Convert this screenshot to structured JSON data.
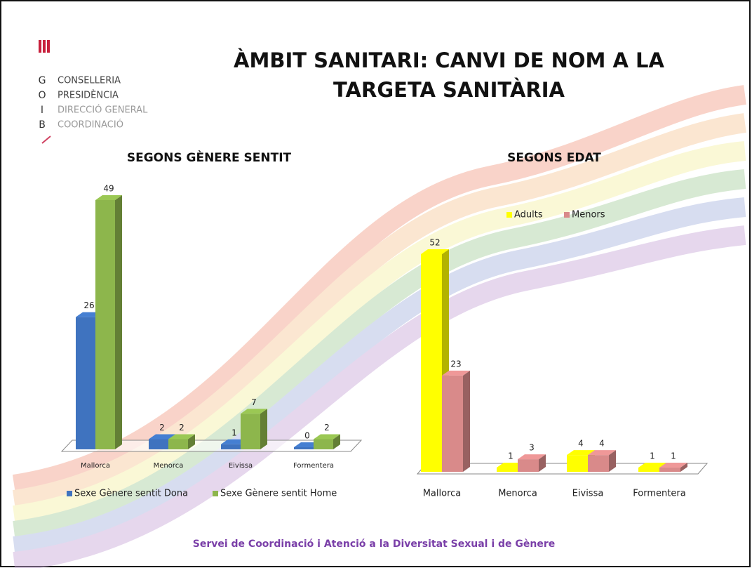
{
  "slide": {
    "title_lines": [
      "ÀMBIT SANITARI: CANVI DE NOM A LA",
      "TARGETA SANITÀRIA"
    ],
    "logo": [
      {
        "letter": "G",
        "text": "CONSELLERIA"
      },
      {
        "letter": "O",
        "text": "PRESIDÈNCIA"
      },
      {
        "letter": "I",
        "text": "DIRECCIÓ GENERAL"
      },
      {
        "letter": "B",
        "text": "COORDINACIÓ"
      }
    ],
    "footer": "Servei de Coordinació i Atenció a la Diversitat Sexual i de Gènere"
  },
  "chart_data": [
    {
      "type": "bar3d",
      "title": "SEGONS GÈNERE SENTIT",
      "categories": [
        "Mallorca",
        "Menorca",
        "Eivissa",
        "Formentera"
      ],
      "series": [
        {
          "name": "Sexe Gènere sentit Dona",
          "color": "#3f73bf",
          "values": [
            26,
            2,
            1,
            0
          ]
        },
        {
          "name": "Sexe Gènere sentit Home",
          "color": "#8db64c",
          "values": [
            49,
            2,
            7,
            2
          ]
        }
      ],
      "legend": "bottom"
    },
    {
      "type": "bar3d",
      "title": "SEGONS EDAT",
      "categories": [
        "Mallorca",
        "Menorca",
        "Eivissa",
        "Formentera"
      ],
      "series": [
        {
          "name": "Adults",
          "color": "#ffff00",
          "values": [
            52,
            1,
            4,
            1
          ]
        },
        {
          "name": "Menors",
          "color": "#d98a8a",
          "values": [
            23,
            3,
            4,
            1
          ]
        }
      ],
      "legend": "top"
    }
  ]
}
